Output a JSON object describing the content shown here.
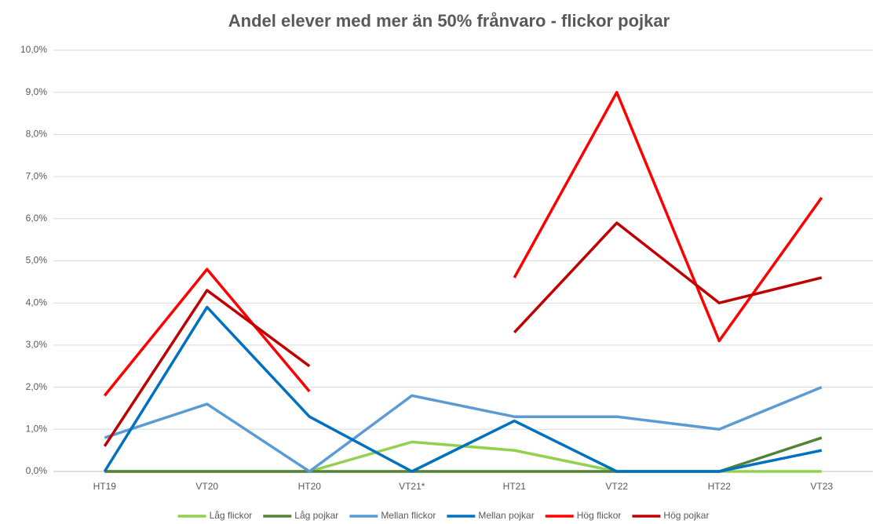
{
  "chart_data": {
    "type": "line",
    "title": "Andel elever med mer än 50% frånvaro - flickor pojkar",
    "categories": [
      "HT19",
      "VT20",
      "HT20",
      "VT21*",
      "HT21",
      "VT22",
      "HT22",
      "VT23"
    ],
    "series": [
      {
        "name": "Låg flickor",
        "color": "#92d050",
        "values": [
          0,
          0,
          0,
          0.7,
          0.5,
          0,
          0,
          0
        ]
      },
      {
        "name": "Låg pojkar",
        "color": "#548235",
        "values": [
          0,
          0,
          0,
          0,
          0,
          0,
          0,
          0.8
        ]
      },
      {
        "name": "Mellan flickor",
        "color": "#5b9bd5",
        "values": [
          0.8,
          1.6,
          0,
          1.8,
          1.3,
          1.3,
          1.0,
          2.0
        ]
      },
      {
        "name": "Mellan pojkar",
        "color": "#0070c0",
        "values": [
          0,
          3.9,
          1.3,
          0,
          1.2,
          0,
          0,
          0.5
        ]
      },
      {
        "name": "Hög flickor",
        "color": "#ff0000",
        "values": [
          1.8,
          4.8,
          1.9,
          null,
          4.6,
          9.0,
          3.1,
          6.5
        ]
      },
      {
        "name": "Hög pojkar",
        "color": "#c00000",
        "values": [
          0.6,
          4.3,
          2.5,
          null,
          3.3,
          5.9,
          4.0,
          4.6
        ]
      }
    ],
    "ylim": [
      0,
      10
    ],
    "yticks": [
      {
        "value": 0,
        "label": "0,0%"
      },
      {
        "value": 1,
        "label": "1,0%"
      },
      {
        "value": 2,
        "label": "2,0%"
      },
      {
        "value": 3,
        "label": "3,0%"
      },
      {
        "value": 4,
        "label": "4,0%"
      },
      {
        "value": 5,
        "label": "5,0%"
      },
      {
        "value": 6,
        "label": "6,0%"
      },
      {
        "value": 7,
        "label": "7,0%"
      },
      {
        "value": 8,
        "label": "8,0%"
      },
      {
        "value": 9,
        "label": "9,0%"
      },
      {
        "value": 10,
        "label": "10,0%"
      }
    ],
    "grid": true,
    "legend": "bottom"
  }
}
